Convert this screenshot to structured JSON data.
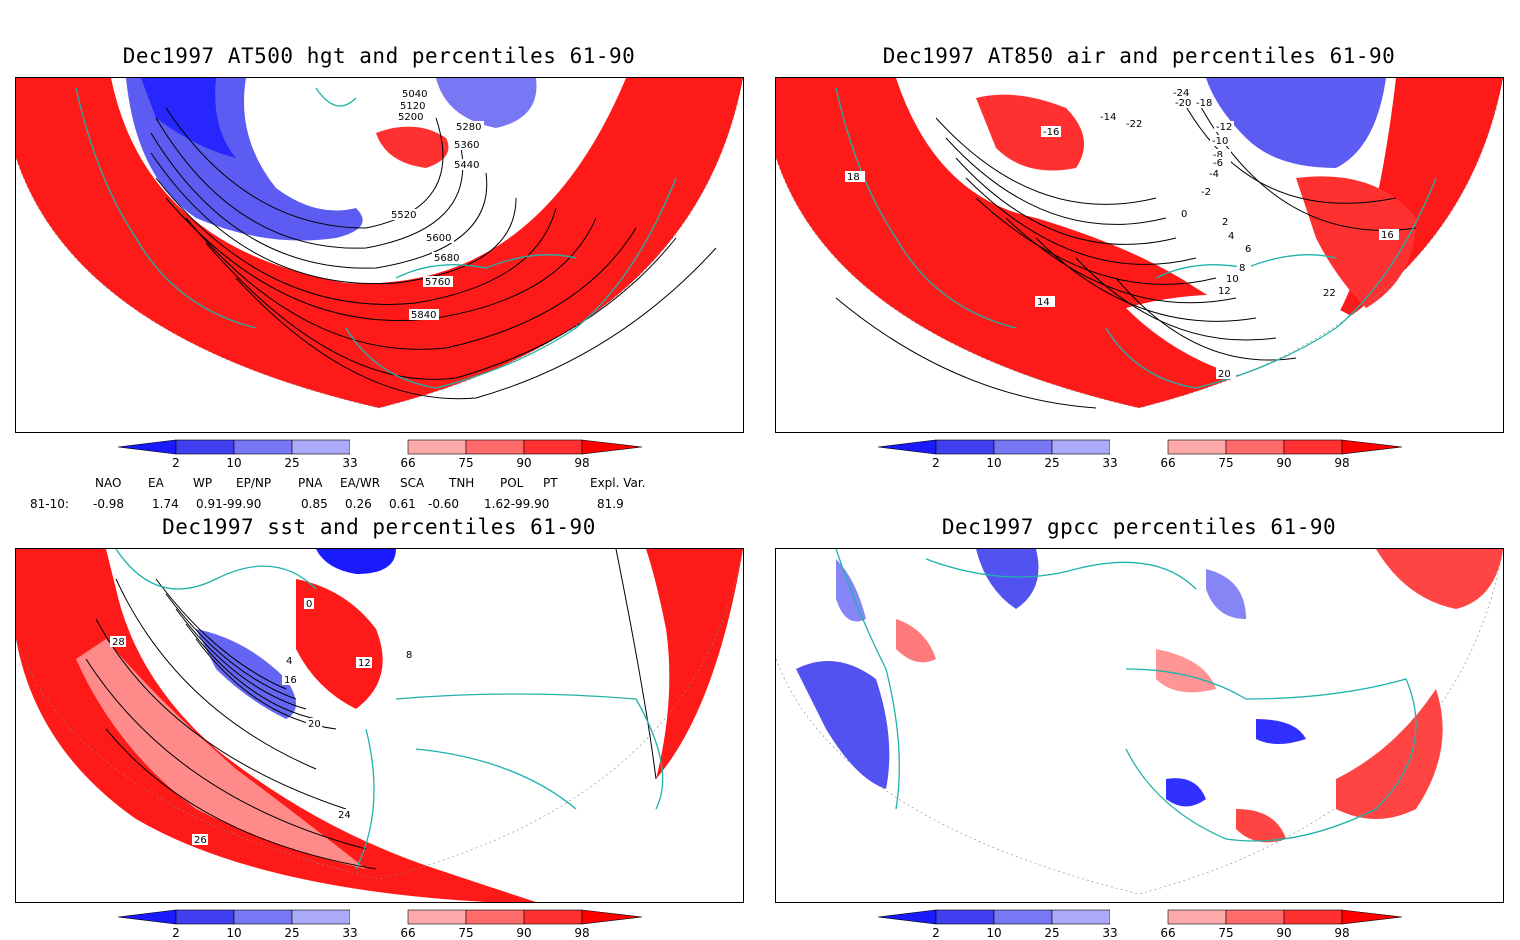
{
  "panels": {
    "p1": {
      "title": "Dec1997 AT500 hgt and percentiles 61-90",
      "contour_labels": [
        "5040",
        "5120",
        "5200",
        "5280",
        "5360",
        "5440",
        "5520",
        "5600",
        "5680",
        "5760",
        "5840"
      ]
    },
    "p2": {
      "title": "Dec1997 AT850 air and percentiles 61-90",
      "contour_labels": [
        "-24",
        "-22",
        "-20",
        "-18",
        "-16",
        "-14",
        "-12",
        "-10",
        "-8",
        "-6",
        "-4",
        "-2",
        "0",
        "2",
        "4",
        "6",
        "8",
        "10",
        "12",
        "14",
        "16",
        "18",
        "20",
        "22"
      ]
    },
    "p3": {
      "title": "Dec1997 sst and percentiles 61-90",
      "contour_labels": [
        "0",
        "4",
        "8",
        "12",
        "16",
        "20",
        "24",
        "26",
        "28"
      ]
    },
    "p4": {
      "title": "Dec1997 gpcc percentiles 61-90"
    }
  },
  "colorbar": {
    "ticks": [
      "2",
      "10",
      "25",
      "33",
      "66",
      "75",
      "90",
      "98"
    ],
    "colors": [
      "#1a1aff",
      "#3f3ff0",
      "#7878f5",
      "#aaaaf8",
      "#ffffff",
      "#ffaaaa",
      "#ff6b6b",
      "#ff3030",
      "#ff0000"
    ]
  },
  "teleconnections": {
    "headers": [
      "NAO",
      "EA",
      "WP",
      "EP/NP",
      "PNA",
      "EA/WR",
      "SCA",
      "TNH",
      "POL",
      "PT",
      "Expl. Var."
    ],
    "row_label": "81-10:",
    "values": [
      "-0.98",
      "1.74",
      "0.91-99.90",
      "0.85",
      "0.26",
      "0.61",
      "-0.60",
      "1.62-99.90",
      "81.9"
    ]
  },
  "colors": {
    "land_outline": "#20b2aa",
    "warm": "#ff0000",
    "cold": "#1a1aff"
  }
}
